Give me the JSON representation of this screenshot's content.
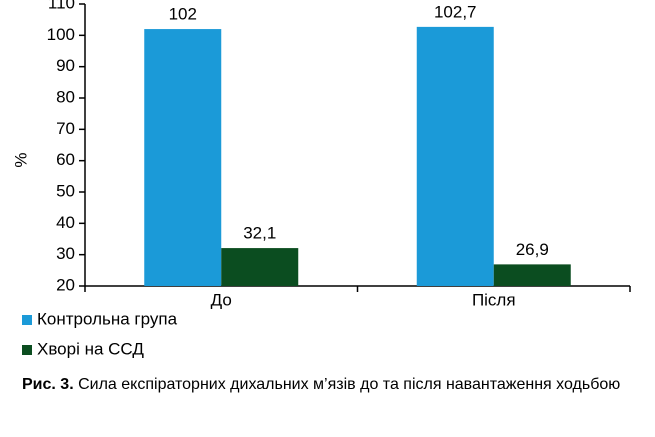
{
  "chart_data": {
    "type": "bar",
    "ylabel": "%",
    "categories": [
      "До",
      "Після"
    ],
    "series": [
      {
        "name": "Контрольна група",
        "color": "#1b9ad8",
        "values": [
          102,
          102.7
        ],
        "value_labels": [
          "102",
          "102,7"
        ]
      },
      {
        "name": "Хворі на ССД",
        "color": "#0b4d20",
        "values": [
          32.1,
          26.9
        ],
        "value_labels": [
          "32,1",
          "26,9"
        ]
      }
    ],
    "ylim": [
      20,
      110
    ],
    "yticks": [
      20,
      30,
      40,
      50,
      60,
      70,
      80,
      90,
      100,
      110
    ],
    "grid": false,
    "legend": "bottom-left",
    "caption_label": "Рис. 3.",
    "caption": "Сила експіраторних дихальних м’язів до та після навантаження ходьбою"
  }
}
